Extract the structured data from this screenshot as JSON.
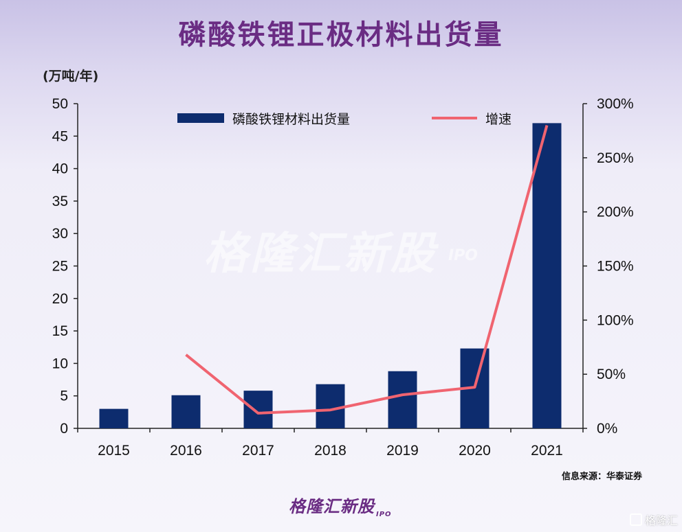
{
  "header": {
    "title": "磷酸铁锂正极材料出货量"
  },
  "chart_data": {
    "type": "bar",
    "title": "磷酸铁锂正极材料出货量",
    "ylabel": "(万吨/年)",
    "categories": [
      "2015",
      "2016",
      "2017",
      "2018",
      "2019",
      "2020",
      "2021"
    ],
    "series": [
      {
        "name": "磷酸铁锂材料出货量",
        "type": "bar",
        "axis": "left",
        "color": "#0d2c6e",
        "values": [
          3.0,
          5.1,
          5.8,
          6.8,
          8.8,
          12.3,
          47.0
        ]
      },
      {
        "name": "增速",
        "type": "line",
        "axis": "right",
        "color": "#f06470",
        "values": [
          null,
          68,
          14,
          17,
          31,
          38,
          280
        ]
      }
    ],
    "ylim": [
      0,
      50
    ],
    "y_ticks": [
      "0",
      "5",
      "10",
      "15",
      "20",
      "25",
      "30",
      "35",
      "40",
      "45",
      "50"
    ],
    "y2lim": [
      0,
      300
    ],
    "y2_ticks": [
      "0%",
      "50%",
      "100%",
      "150%",
      "200%",
      "250%",
      "300%"
    ],
    "legend_position": "top",
    "grid": false
  },
  "source": "信息来源：华泰证券",
  "watermark": {
    "text": "格隆汇新股",
    "sub": "IPO"
  },
  "brand": {
    "text": "格隆汇新股",
    "sub": "IPO"
  },
  "badge": {
    "text": "格隆汇"
  }
}
